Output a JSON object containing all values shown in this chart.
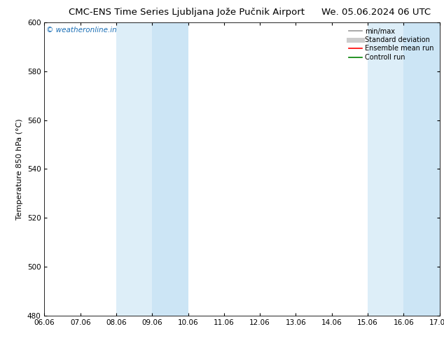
{
  "title_left": "CMC-ENS Time Series Ljubljana Jože Pučnik Airport",
  "title_right": "We. 05.06.2024 06 UTC",
  "ylabel": "Temperature 850 hPa (°C)",
  "ylim": [
    480,
    600
  ],
  "yticks": [
    480,
    500,
    520,
    540,
    560,
    580,
    600
  ],
  "xtick_labels": [
    "06.06",
    "07.06",
    "08.06",
    "09.06",
    "10.06",
    "11.06",
    "12.06",
    "13.06",
    "14.06",
    "15.06",
    "16.06",
    "17.06"
  ],
  "xtick_positions": [
    0,
    1,
    2,
    3,
    4,
    5,
    6,
    7,
    8,
    9,
    10,
    11
  ],
  "shaded_bands": [
    {
      "xmin": 2,
      "xmax": 3,
      "color": "#ddeef8"
    },
    {
      "xmin": 3,
      "xmax": 4,
      "color": "#cce5f5"
    },
    {
      "xmin": 9,
      "xmax": 10,
      "color": "#ddeef8"
    },
    {
      "xmin": 10,
      "xmax": 11,
      "color": "#cce5f5"
    }
  ],
  "watermark": "© weatheronline.in",
  "watermark_color": "#1a6eb5",
  "legend_entries": [
    {
      "label": "min/max",
      "color": "#999999",
      "lw": 1.2,
      "style": "solid"
    },
    {
      "label": "Standard deviation",
      "color": "#cccccc",
      "lw": 5,
      "style": "solid"
    },
    {
      "label": "Ensemble mean run",
      "color": "red",
      "lw": 1.2,
      "style": "solid"
    },
    {
      "label": "Controll run",
      "color": "green",
      "lw": 1.2,
      "style": "solid"
    }
  ],
  "bg_color": "#ffffff",
  "plot_bg_color": "#ffffff",
  "title_fontsize": 9.5,
  "tick_fontsize": 7.5,
  "ylabel_fontsize": 8,
  "legend_fontsize": 7,
  "watermark_fontsize": 7.5
}
